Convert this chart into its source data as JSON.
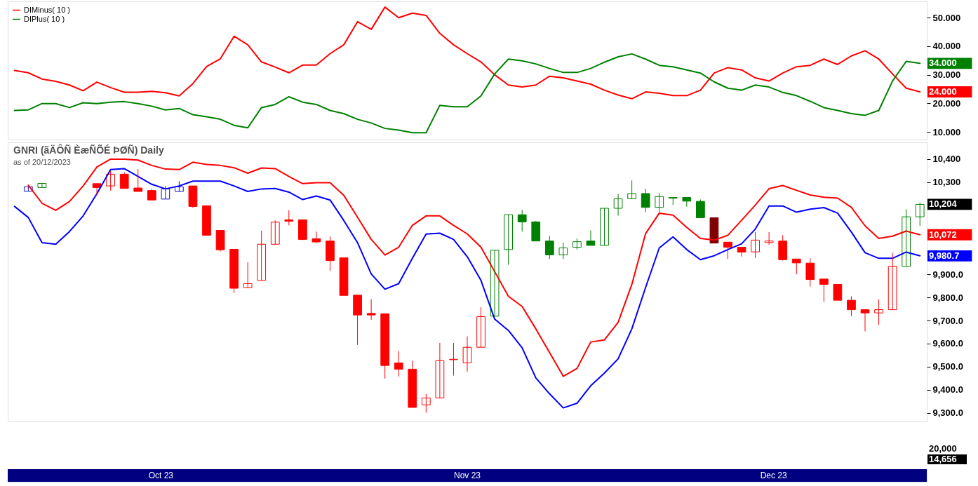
{
  "chart_data": [
    {
      "type": "line",
      "categories": [
        null,
        null,
        null,
        null,
        null,
        null,
        null,
        null,
        null,
        null,
        null,
        null,
        null,
        null,
        null,
        null,
        null,
        null,
        null,
        null,
        null,
        null,
        null,
        null,
        null,
        null,
        null,
        null,
        null,
        null,
        null,
        null,
        null,
        null,
        null,
        null,
        null,
        null,
        null,
        null,
        null,
        null,
        null,
        null,
        null,
        null,
        null,
        null,
        null,
        null,
        null,
        null,
        null,
        null,
        null,
        null,
        null,
        null,
        null,
        null,
        null,
        null,
        null,
        null,
        null,
        null,
        null
      ],
      "series": [
        {
          "name": "DIMinus( 10 )",
          "color": "#ff0000",
          "values": [
            31.5,
            30.7,
            28.5,
            27.7,
            26.4,
            24.4,
            27.4,
            25.5,
            23.9,
            23.9,
            24.2,
            23.7,
            22.6,
            26.9,
            32.9,
            35.6,
            43.5,
            40.5,
            34.5,
            32.7,
            30.7,
            33.4,
            33.4,
            37.4,
            40.5,
            48.6,
            45.9,
            53.7,
            50.0,
            51.6,
            50.8,
            44.5,
            40.5,
            37.4,
            34.5,
            30.0,
            26.4,
            25.7,
            26.4,
            29.5,
            28.9,
            27.8,
            26.7,
            24.6,
            22.9,
            21.6,
            24.0,
            23.5,
            22.7,
            22.7,
            24.6,
            30.6,
            32.5,
            31.7,
            28.9,
            27.8,
            30.6,
            32.8,
            33.3,
            35.5,
            33.6,
            36.6,
            38.4,
            35.5,
            30.3,
            25.3,
            24.0
          ],
          "value_labels": [
            null,
            null,
            null,
            null,
            null,
            null,
            null,
            null,
            null,
            null,
            null,
            null,
            null,
            null,
            null,
            null,
            null,
            null,
            null,
            null,
            null,
            null,
            null,
            null,
            null,
            null,
            null,
            null,
            null,
            null,
            null,
            null,
            null,
            null,
            null,
            null,
            null,
            null,
            null,
            null,
            null,
            null,
            null,
            null,
            null,
            null,
            null,
            null,
            null,
            null,
            null,
            null,
            null,
            null,
            null,
            null,
            null,
            null,
            null,
            null,
            null,
            null,
            null,
            null,
            null,
            null,
            "24.000"
          ]
        },
        {
          "name": "DIPlus( 10 )",
          "color": "#008000",
          "values": [
            17.5,
            17.7,
            19.9,
            19.9,
            18.5,
            20.2,
            19.9,
            20.4,
            20.6,
            19.9,
            19.0,
            17.7,
            18.2,
            16.0,
            15.3,
            14.4,
            12.3,
            11.4,
            18.5,
            19.6,
            22.3,
            20.4,
            19.6,
            17.5,
            16.4,
            14.4,
            13.1,
            11.2,
            10.6,
            9.7,
            9.7,
            19.3,
            18.8,
            18.8,
            22.6,
            30.3,
            35.5,
            34.9,
            33.8,
            32.2,
            30.8,
            30.8,
            32.2,
            34.4,
            36.3,
            37.3,
            35.5,
            33.3,
            32.8,
            31.7,
            30.6,
            27.5,
            25.3,
            24.6,
            26.4,
            25.7,
            23.8,
            22.7,
            20.7,
            18.5,
            17.5,
            16.4,
            15.8,
            17.5,
            27.8,
            34.7,
            34.0
          ],
          "value_labels": [
            null,
            null,
            null,
            null,
            null,
            null,
            null,
            null,
            null,
            null,
            null,
            null,
            null,
            null,
            null,
            null,
            null,
            null,
            null,
            null,
            null,
            null,
            null,
            null,
            null,
            null,
            null,
            null,
            null,
            null,
            null,
            null,
            null,
            null,
            null,
            null,
            null,
            null,
            null,
            null,
            null,
            null,
            null,
            null,
            null,
            null,
            null,
            null,
            null,
            null,
            null,
            null,
            null,
            null,
            null,
            null,
            null,
            null,
            null,
            null,
            null,
            null,
            null,
            null,
            null,
            null,
            "34.000"
          ]
        }
      ],
      "ylim": [
        7.3,
        55.7
      ],
      "yticks": [
        {
          "value": 10,
          "label": "10.000"
        },
        {
          "value": 20,
          "label": "20.000"
        },
        {
          "value": 30,
          "label": "30.000"
        },
        {
          "value": 40,
          "label": "40.000"
        },
        {
          "value": 50,
          "label": "50.000"
        }
      ],
      "legend": "top left",
      "tick_labels": "y"
    },
    {
      "type": "candlestick",
      "title": "GNRI (ãÄÔÑ ÈæÑÕÉ ÞØÑ) Daily",
      "subtitle": "as of 20/12/2023",
      "categories": [
        null,
        null,
        null,
        null,
        null,
        null,
        null,
        null,
        null,
        null,
        null,
        null,
        null,
        null,
        null,
        null,
        null,
        null,
        null,
        null,
        null,
        null,
        null,
        null,
        null,
        null,
        null,
        null,
        null,
        null,
        null,
        null,
        null,
        null,
        null,
        null,
        null,
        null,
        null,
        null,
        null,
        null,
        null,
        null,
        null,
        null,
        null,
        null,
        null,
        null,
        null,
        null,
        null,
        null,
        null,
        null,
        null,
        null,
        null,
        null,
        null,
        null,
        null,
        null,
        null,
        null,
        null
      ],
      "ohlc": [
        null,
        [
          10261,
          10280,
          10261,
          10280
        ],
        [
          10277,
          10295,
          10277,
          10295
        ],
        null,
        null,
        null,
        [
          10294,
          10294,
          10246,
          10277
        ],
        [
          10284,
          10348,
          10264,
          10335
        ],
        [
          10335,
          10343,
          10273,
          10273
        ],
        [
          10275,
          10357,
          10260,
          10260
        ],
        [
          10264,
          10271,
          10223,
          10223
        ],
        [
          10227,
          10284,
          10227,
          10271
        ],
        [
          10260,
          10305,
          10260,
          10280
        ],
        [
          10284,
          10284,
          10189,
          10195
        ],
        [
          10198,
          10198,
          10070,
          10070
        ],
        [
          10091,
          10091,
          10000,
          10007
        ],
        [
          10009,
          10009,
          9819,
          9840
        ],
        [
          9843,
          9953,
          9843,
          9860
        ],
        [
          9874,
          10090,
          9874,
          10031
        ],
        [
          10031,
          10134,
          10031,
          10127
        ],
        [
          10137,
          10179,
          10113,
          10131
        ],
        [
          10137,
          10137,
          10049,
          10052
        ],
        [
          10055,
          10086,
          10035,
          10041
        ],
        [
          10045,
          10065,
          9915,
          9960
        ],
        [
          9972,
          9972,
          9809,
          9809
        ],
        [
          9810,
          9810,
          9594,
          9724
        ],
        [
          9731,
          9792,
          9703,
          9724
        ],
        [
          9729,
          9729,
          9448,
          9505
        ],
        [
          9516,
          9567,
          9457,
          9489
        ],
        [
          9489,
          9526,
          9323,
          9323
        ],
        [
          9334,
          9382,
          9300,
          9364
        ],
        [
          9364,
          9603,
          9364,
          9526
        ],
        [
          9530,
          9603,
          9461,
          9532
        ],
        [
          9516,
          9631,
          9478,
          9584
        ],
        [
          9584,
          9758,
          9584,
          9717
        ],
        [
          9719,
          10005,
          9719,
          10005
        ],
        [
          10008,
          10159,
          9942,
          10159
        ],
        [
          10159,
          10180,
          10086,
          10128
        ],
        [
          10128,
          10132,
          10045,
          10045
        ],
        [
          10045,
          10067,
          9967,
          9985
        ],
        [
          9985,
          10038,
          9967,
          10015
        ],
        [
          10018,
          10056,
          10008,
          10042
        ],
        [
          10045,
          10091,
          10026,
          10026
        ],
        [
          10026,
          10187,
          10026,
          10187
        ],
        [
          10187,
          10249,
          10155,
          10228
        ],
        [
          10228,
          10308,
          10228,
          10251
        ],
        [
          10251,
          10272,
          10170,
          10191
        ],
        [
          10191,
          10253,
          10170,
          10238
        ],
        [
          10234,
          10234,
          10201,
          10231
        ],
        [
          10234,
          10234,
          10194,
          10218
        ],
        [
          10217,
          10225,
          10146,
          10146
        ],
        [
          10146,
          10146,
          10036,
          10036
        ],
        [
          10040,
          10040,
          9967,
          10018
        ],
        [
          10018,
          10018,
          9978,
          9997
        ],
        [
          9998,
          10084,
          9971,
          10049
        ],
        [
          10038,
          10084,
          10029,
          10045
        ],
        [
          10045,
          10070,
          9960,
          9964
        ],
        [
          9967,
          9967,
          9901,
          9950
        ],
        [
          9949,
          9970,
          9847,
          9878
        ],
        [
          9880,
          9880,
          9781,
          9857
        ],
        [
          9857,
          9857,
          9788,
          9788
        ],
        [
          9788,
          9805,
          9719,
          9747
        ],
        [
          9747,
          9747,
          9653,
          9733
        ],
        [
          9733,
          9791,
          9681,
          9747
        ],
        [
          9747,
          9994,
          9747,
          9935
        ],
        [
          9935,
          10183,
          9935,
          10150
        ],
        [
          10150,
          10212,
          10111,
          10204
        ]
      ],
      "colors": [
        null,
        "#1010c0",
        "#008000",
        null,
        null,
        null,
        "#ff0000",
        "#ff0000",
        "#ff0000",
        "#ff0000",
        "#ff0000",
        "#1010c0",
        "#1010c0",
        "#ff0000",
        "#ff0000",
        "#ff0000",
        "#ff0000",
        "#ff0000",
        "#ff0000",
        "#ff0000",
        "#ff0000",
        "#ff0000",
        "#ff0000",
        "#ff0000",
        "#ff0000",
        "#ff0000",
        "#ff0000",
        "#ff0000",
        "#ff0000",
        "#ff0000",
        "#ff0000",
        "#ff0000",
        "#ff0000",
        "#ff0000",
        "#ff0000",
        "#008000",
        "#008000",
        "#008000",
        "#008000",
        "#008000",
        "#008000",
        "#008000",
        "#008000",
        "#008000",
        "#008000",
        "#008000",
        "#008000",
        "#008000",
        "#008000",
        "#008000",
        "#008000",
        "#800000",
        "#ff0000",
        "#ff0000",
        "#ff0000",
        "#ff0000",
        "#ff0000",
        "#ff0000",
        "#ff0000",
        "#ff0000",
        "#ff0000",
        "#ff0000",
        "#ff0000",
        "#ff0000",
        "#ff0000",
        "#008000",
        "#008000"
      ],
      "value_labels": [
        null,
        null,
        null,
        null,
        null,
        null,
        null,
        null,
        null,
        null,
        null,
        null,
        null,
        null,
        null,
        null,
        null,
        null,
        null,
        null,
        null,
        null,
        null,
        null,
        null,
        null,
        null,
        null,
        null,
        null,
        null,
        null,
        null,
        null,
        null,
        null,
        null,
        null,
        null,
        null,
        null,
        null,
        null,
        null,
        null,
        null,
        null,
        null,
        null,
        null,
        null,
        null,
        null,
        null,
        null,
        null,
        null,
        null,
        null,
        null,
        null,
        null,
        null,
        null,
        null,
        null,
        "10,204"
      ],
      "series": [
        {
          "type": "line",
          "color": "#ff0000",
          "values": [
            null,
            10287,
            10209,
            10178,
            10216,
            10284,
            10366,
            10400,
            10400,
            10396,
            10373,
            10357,
            10355,
            10387,
            10377,
            10373,
            10363,
            10339,
            10362,
            10359,
            10325,
            10294,
            10298,
            10298,
            10243,
            10148,
            10052,
            9984,
            10018,
            10113,
            10154,
            10154,
            10113,
            10076,
            10018,
            9912,
            9805,
            9761,
            9664,
            9561,
            9458,
            9492,
            9607,
            9616,
            9692,
            9857,
            10077,
            10166,
            10157,
            10104,
            10056,
            10049,
            10070,
            10135,
            10201,
            10272,
            10286,
            10265,
            10245,
            10235,
            10231,
            10191,
            10111,
            10056,
            10066,
            10088,
            10072
          ],
          "value_labels": [
            null,
            null,
            null,
            null,
            null,
            null,
            null,
            null,
            null,
            null,
            null,
            null,
            null,
            null,
            null,
            null,
            null,
            null,
            null,
            null,
            null,
            null,
            null,
            null,
            null,
            null,
            null,
            null,
            null,
            null,
            null,
            null,
            null,
            null,
            null,
            null,
            null,
            null,
            null,
            null,
            null,
            null,
            null,
            null,
            null,
            null,
            null,
            null,
            null,
            null,
            null,
            null,
            null,
            null,
            null,
            null,
            null,
            null,
            null,
            null,
            null,
            null,
            null,
            null,
            null,
            null,
            "10,072"
          ]
        },
        {
          "type": "line",
          "color": "#0000ff",
          "values": [
            10195,
            10147,
            10038,
            10031,
            10086,
            10154,
            10250,
            10355,
            10359,
            10325,
            10291,
            10271,
            10284,
            10305,
            10305,
            10305,
            10284,
            10260,
            10271,
            10273,
            10257,
            10225,
            10240,
            10223,
            10134,
            10038,
            9902,
            9836,
            9860,
            9970,
            10075,
            10079,
            10052,
            9977,
            9874,
            9706,
            9657,
            9582,
            9451,
            9382,
            9321,
            9341,
            9417,
            9472,
            9534,
            9664,
            9843,
            10015,
            10063,
            10008,
            9964,
            9981,
            10008,
            10033,
            10097,
            10197,
            10197,
            10170,
            10183,
            10190,
            10166,
            10084,
            9994,
            9970,
            9970,
            9997,
            9980.7
          ],
          "value_labels": [
            null,
            null,
            null,
            null,
            null,
            null,
            null,
            null,
            null,
            null,
            null,
            null,
            null,
            null,
            null,
            null,
            null,
            null,
            null,
            null,
            null,
            null,
            null,
            null,
            null,
            null,
            null,
            null,
            null,
            null,
            null,
            null,
            null,
            null,
            null,
            null,
            null,
            null,
            null,
            null,
            null,
            null,
            null,
            null,
            null,
            null,
            null,
            null,
            null,
            null,
            null,
            null,
            null,
            null,
            null,
            null,
            null,
            null,
            null,
            null,
            null,
            null,
            null,
            null,
            null,
            null,
            "9,980.7"
          ]
        }
      ],
      "ylim": [
        9262,
        10473
      ],
      "yticks": [
        {
          "value": 9300,
          "label": "9,300.0"
        },
        {
          "value": 9400,
          "label": "9,400.0"
        },
        {
          "value": 9500,
          "label": "9,500.0"
        },
        {
          "value": 9600,
          "label": "9,600.0"
        },
        {
          "value": 9700,
          "label": "9,700.0"
        },
        {
          "value": 9800,
          "label": "9,800.0"
        },
        {
          "value": 9900,
          "label": "9,900.0"
        },
        {
          "value": 10300,
          "label": "10,300"
        },
        {
          "value": 10400,
          "label": "10,400"
        }
      ],
      "tick_labels": "y"
    },
    {
      "type": "other",
      "annotations": [
        "20,000",
        "14,656"
      ]
    },
    {
      "type": "other",
      "annotations": [
        "Oct 23",
        "Nov 23",
        "Dec 23"
      ]
    }
  ]
}
